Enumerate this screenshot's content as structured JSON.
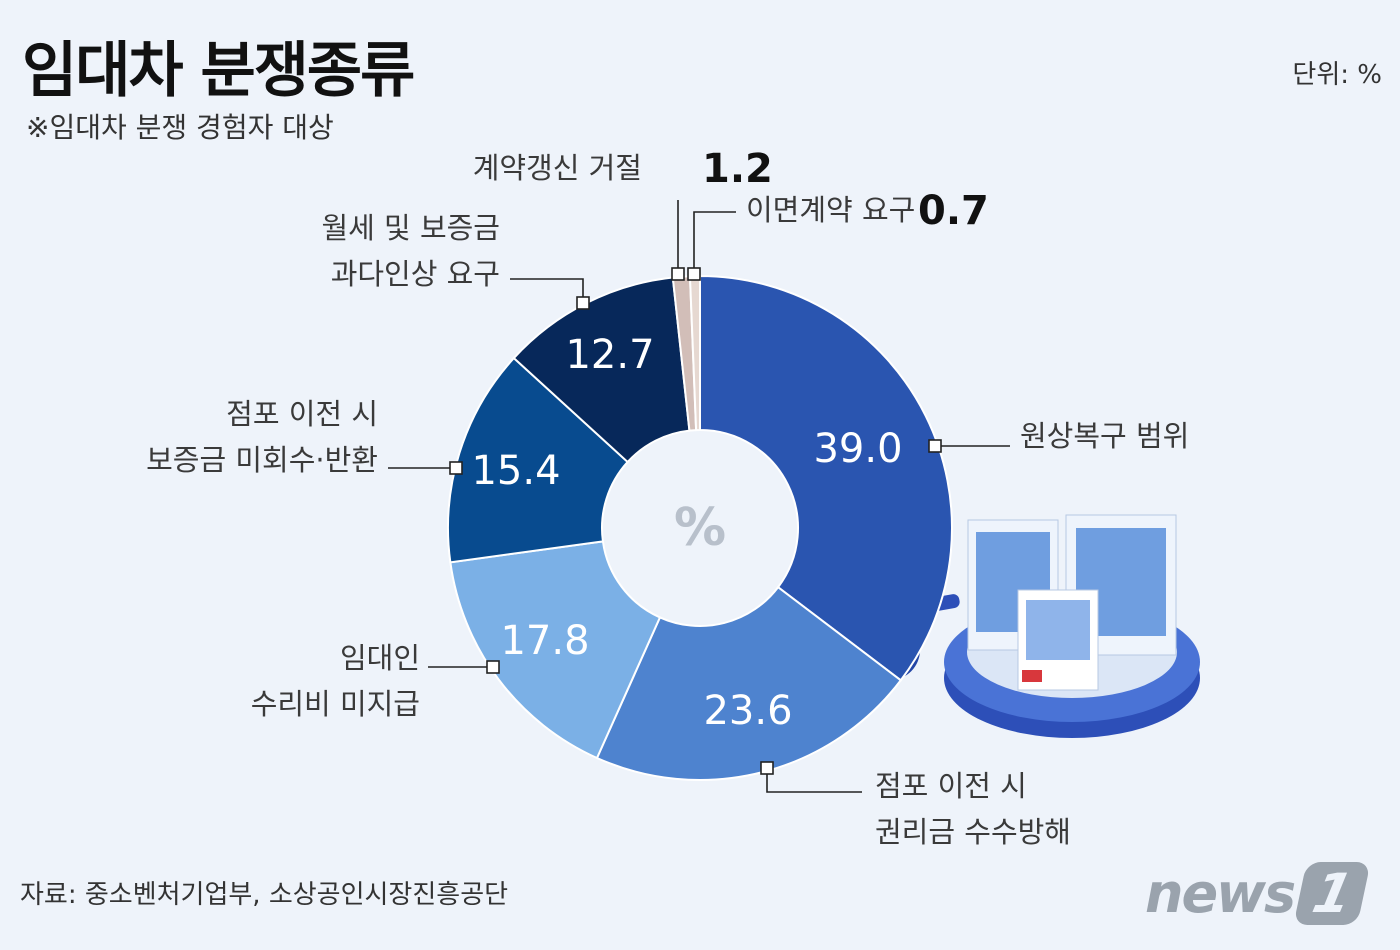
{
  "header": {
    "title": "임대차 분쟁종류",
    "subtitle": "※임대차 분쟁 경험자 대상",
    "unit": "단위: %"
  },
  "footer": {
    "source": "자료: 중소벤처기업부, 소상공인시장진흥공단",
    "logo_text": "news",
    "logo_num": "1"
  },
  "chart_data": {
    "type": "pie",
    "donut": true,
    "center_label": "%",
    "slices": [
      {
        "label": [
          "원상복구 범위"
        ],
        "value": 39.0,
        "value_text": "39.0",
        "color": "#2a55b0"
      },
      {
        "label": [
          "점포 이전 시",
          "권리금 수수방해"
        ],
        "value": 23.6,
        "value_text": "23.6",
        "color": "#4e83cf"
      },
      {
        "label": [
          "임대인",
          "수리비 미지급"
        ],
        "value": 17.8,
        "value_text": "17.8",
        "color": "#7bb0e6"
      },
      {
        "label": [
          "점포 이전 시",
          "보증금 미회수·반환"
        ],
        "value": 15.4,
        "value_text": "15.4",
        "color": "#084b8f"
      },
      {
        "label": [
          "월세 및 보증금",
          "과다인상 요구"
        ],
        "value": 12.7,
        "value_text": "12.7",
        "color": "#07285a"
      },
      {
        "label": [
          "계약갱신 거절"
        ],
        "value": 1.2,
        "value_text": "1.2",
        "color": "#d2beb8"
      },
      {
        "label": [
          "이면계약 요구"
        ],
        "value": 0.7,
        "value_text": "0.7",
        "color": "#e6d8d1"
      }
    ]
  }
}
